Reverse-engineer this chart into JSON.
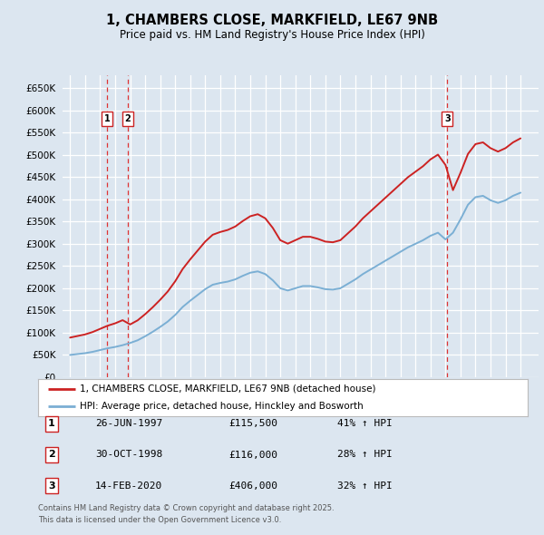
{
  "title": "1, CHAMBERS CLOSE, MARKFIELD, LE67 9NB",
  "subtitle": "Price paid vs. HM Land Registry's House Price Index (HPI)",
  "legend_line1": "1, CHAMBERS CLOSE, MARKFIELD, LE67 9NB (detached house)",
  "legend_line2": "HPI: Average price, detached house, Hinckley and Bosworth",
  "footer1": "Contains HM Land Registry data © Crown copyright and database right 2025.",
  "footer2": "This data is licensed under the Open Government Licence v3.0.",
  "transactions": [
    {
      "num": 1,
      "date": "26-JUN-1997",
      "price": 115500,
      "hpi_pct": "41% ↑ HPI",
      "year": 1997.48
    },
    {
      "num": 2,
      "date": "30-OCT-1998",
      "price": 116000,
      "hpi_pct": "28% ↑ HPI",
      "year": 1998.83
    },
    {
      "num": 3,
      "date": "14-FEB-2020",
      "price": 406000,
      "hpi_pct": "32% ↑ HPI",
      "year": 2020.12
    }
  ],
  "hpi_color": "#7bafd4",
  "price_color": "#cc2222",
  "vline_color": "#dd3333",
  "fig_bg": "#dce6f0",
  "plot_bg": "#dce6f0",
  "ylim": [
    0,
    680000
  ],
  "yticks": [
    0,
    50000,
    100000,
    150000,
    200000,
    250000,
    300000,
    350000,
    400000,
    450000,
    500000,
    550000,
    600000,
    650000
  ],
  "xmin": 1994.5,
  "xmax": 2026.2
}
